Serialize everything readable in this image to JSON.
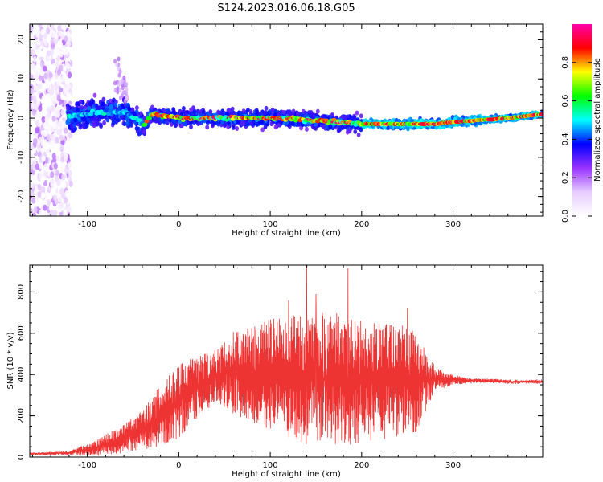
{
  "title": "S124.2023.016.06.18.G05",
  "chart_data": [
    {
      "type": "heatmap",
      "xlabel": "Height of straight line (km)",
      "ylabel": "Frequency (Hz)",
      "xlim": [
        -163,
        398
      ],
      "ylim": [
        -25,
        24
      ],
      "xticks": [
        -100,
        0,
        100,
        200,
        300
      ],
      "yticks": [
        -20,
        -10,
        0,
        10,
        20
      ],
      "colorbar": {
        "label": "Normalized spectral amplitude",
        "range": [
          0,
          1
        ],
        "ticks": [
          0.0,
          0.2,
          0.4,
          0.6,
          0.8
        ],
        "colormap": [
          "#ffffff",
          "#e6ccff",
          "#9933ff",
          "#0000ff",
          "#00ffff",
          "#00ff00",
          "#ffff00",
          "#ff0000",
          "#ff00aa"
        ]
      },
      "ridge": {
        "x": [
          -120,
          -100,
          -75,
          -60,
          -45,
          -38,
          -30,
          0,
          50,
          100,
          150,
          200,
          250,
          280,
          300,
          330,
          360,
          398
        ],
        "frequency": [
          0.5,
          1.0,
          1.5,
          1.5,
          -0.5,
          -2,
          1,
          0,
          0,
          0,
          -0.5,
          -1.5,
          -1.5,
          -1.5,
          -1,
          -0.5,
          0,
          1
        ]
      },
      "grid": false
    },
    {
      "type": "line",
      "xlabel": "Height of straight line (km)",
      "ylabel": "SNR (10 * v/v)",
      "xlim": [
        -163,
        398
      ],
      "ylim": [
        0,
        930
      ],
      "xticks": [
        -100,
        0,
        100,
        200,
        300
      ],
      "yticks": [
        0,
        200,
        400,
        600,
        800
      ],
      "series": [
        {
          "color": "#ee3333",
          "x": [
            -163,
            -120,
            -100,
            -80,
            -60,
            -40,
            -20,
            0,
            20,
            40,
            60,
            80,
            100,
            120,
            140,
            160,
            180,
            200,
            220,
            240,
            260,
            280,
            300,
            320,
            340,
            360,
            380,
            398
          ],
          "mean": [
            15,
            20,
            35,
            60,
            90,
            130,
            200,
            270,
            340,
            390,
            410,
            400,
            400,
            390,
            380,
            380,
            375,
            370,
            370,
            365,
            355,
            380,
            375,
            370,
            370,
            365,
            365,
            365
          ],
          "spread": [
            5,
            10,
            30,
            50,
            70,
            100,
            150,
            180,
            150,
            130,
            200,
            230,
            270,
            300,
            320,
            320,
            320,
            300,
            290,
            280,
            250,
            60,
            25,
            12,
            10,
            10,
            10,
            10
          ],
          "peaks": [
            {
              "x": 140,
              "y": 920
            },
            {
              "x": 185,
              "y": 915
            },
            {
              "x": 150,
              "y": 790
            },
            {
              "x": 120,
              "y": 760
            },
            {
              "x": 250,
              "y": 720
            }
          ]
        }
      ],
      "grid": false
    }
  ]
}
